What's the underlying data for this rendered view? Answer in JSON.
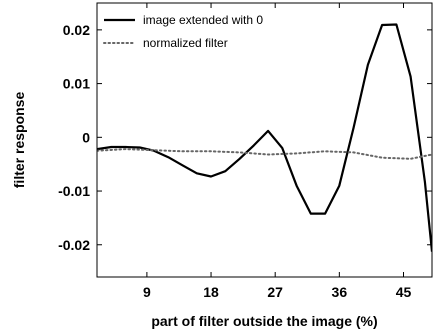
{
  "chart_data": {
    "type": "line",
    "xlabel": "part of filter outside the image (%)",
    "ylabel": "filter response",
    "xlim": [
      2,
      49
    ],
    "ylim": [
      -0.026,
      0.025
    ],
    "xticks": [
      9,
      18,
      27,
      36,
      45
    ],
    "xtick_labels": [
      "9",
      "18",
      "27",
      "36",
      "45"
    ],
    "yticks": [
      0.02,
      0.01,
      0,
      -0.01,
      -0.02
    ],
    "ytick_labels": [
      "0.02",
      "0.01",
      "0",
      "-0.01",
      "-0.02"
    ],
    "grid": false,
    "legend_position": "top-left",
    "series": [
      {
        "name": "image extended with 0",
        "style": "solid",
        "color": "#000000",
        "x": [
          2,
          4,
          6,
          8,
          10,
          12,
          14,
          16,
          18,
          20,
          22,
          24,
          26,
          28,
          30,
          32,
          34,
          36,
          38,
          40,
          42,
          44,
          46,
          48,
          49
        ],
        "y": [
          -0.0022,
          -0.0018,
          -0.0018,
          -0.0019,
          -0.0025,
          -0.0037,
          -0.0052,
          -0.0067,
          -0.0073,
          -0.0063,
          -0.004,
          -0.0015,
          0.0012,
          -0.002,
          -0.009,
          -0.0142,
          -0.0142,
          -0.009,
          0.0018,
          0.0135,
          0.0209,
          0.021,
          0.0113,
          -0.0083,
          -0.0213
        ]
      },
      {
        "name": "normalized filter",
        "style": "dotted",
        "color": "#666666",
        "x": [
          2,
          6,
          10,
          14,
          18,
          22,
          26,
          30,
          34,
          38,
          42,
          46,
          49
        ],
        "y": [
          -0.0025,
          -0.0022,
          -0.0024,
          -0.0026,
          -0.0026,
          -0.0028,
          -0.0032,
          -0.003,
          -0.0026,
          -0.0028,
          -0.0038,
          -0.004,
          -0.0032
        ]
      }
    ]
  }
}
